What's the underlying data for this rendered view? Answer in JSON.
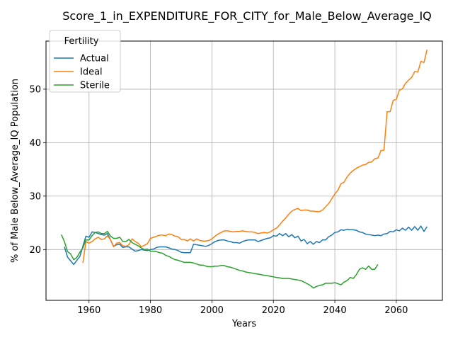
{
  "chart_data": {
    "type": "line",
    "title": "Score_1_in_EXPENDITURE_FOR_CITY_for_Male_Below_Average_IQ",
    "xlabel": "Years",
    "ylabel": "% of Male Below_Average_IQ Population",
    "xlim": [
      1946,
      2075
    ],
    "ylim": [
      10.5,
      59
    ],
    "xticks": [
      1960,
      1980,
      2000,
      2020,
      2040,
      2060
    ],
    "yticks": [
      20,
      30,
      40,
      50
    ],
    "grid": true,
    "legend": {
      "title": "Fertility",
      "position": "top-left"
    },
    "series": [
      {
        "name": "Actual",
        "color": "#1f77b4",
        "x": [
          1952,
          1953,
          1955,
          1957,
          1959,
          1960,
          1961,
          1962,
          1963,
          1964,
          1965,
          1966,
          1967,
          1968,
          1969,
          1970,
          1971,
          1972,
          1973,
          1974,
          1975,
          1976,
          1977,
          1978,
          1979,
          1980,
          1981,
          1982,
          1983,
          1984,
          1985,
          1986,
          1987,
          1988,
          1989,
          1990,
          1991,
          1992,
          1993,
          1994,
          1995,
          1996,
          1997,
          1998,
          1999,
          2000,
          2001,
          2002,
          2003,
          2004,
          2005,
          2006,
          2007,
          2008,
          2009,
          2010,
          2011,
          2012,
          2013,
          2014,
          2015,
          2016,
          2017,
          2018,
          2019,
          2020,
          2021,
          2022,
          2023,
          2024,
          2025,
          2026,
          2027,
          2028,
          2029,
          2030,
          2031,
          2032,
          2033,
          2034,
          2035,
          2036,
          2037,
          2038,
          2039,
          2040,
          2041,
          2042,
          2043,
          2044,
          2045,
          2046,
          2047,
          2048,
          2049,
          2050,
          2051,
          2052,
          2053,
          2054,
          2055,
          2056,
          2057,
          2058,
          2059,
          2060,
          2061,
          2062,
          2063,
          2064,
          2065,
          2066,
          2067,
          2068,
          2069,
          2070
        ],
        "values": [
          20.5,
          18.6,
          17.2,
          18.7,
          22.5,
          22.3,
          23.3,
          23.2,
          23.0,
          22.8,
          22.7,
          23.0,
          21.8,
          20.6,
          20.9,
          21.0,
          20.4,
          20.5,
          20.5,
          20.1,
          19.7,
          19.8,
          20.0,
          19.9,
          19.8,
          20.0,
          20.1,
          20.4,
          20.5,
          20.5,
          20.5,
          20.3,
          20.1,
          20.0,
          19.8,
          19.5,
          19.4,
          19.4,
          19.4,
          21.0,
          20.9,
          20.8,
          20.7,
          20.6,
          20.8,
          21.1,
          21.5,
          21.7,
          21.8,
          21.8,
          21.6,
          21.5,
          21.3,
          21.3,
          21.2,
          21.5,
          21.7,
          21.8,
          21.8,
          21.8,
          21.5,
          21.7,
          21.9,
          22.1,
          22.2,
          22.6,
          22.5,
          23.0,
          22.6,
          23.0,
          22.4,
          22.8,
          22.2,
          22.5,
          21.6,
          21.9,
          21.1,
          21.5,
          21.0,
          21.5,
          21.3,
          21.8,
          21.8,
          22.4,
          22.7,
          23.2,
          23.3,
          23.7,
          23.6,
          23.8,
          23.7,
          23.7,
          23.6,
          23.3,
          23.2,
          22.9,
          22.8,
          22.7,
          22.6,
          22.7,
          22.6,
          22.9,
          23.0,
          23.4,
          23.3,
          23.7,
          23.5,
          24.0,
          23.6,
          24.2,
          23.6,
          24.3,
          23.6,
          24.4,
          23.4,
          24.3
        ]
      },
      {
        "name": "Ideal",
        "color": "#ff7f0e",
        "x": [
          1958,
          1959,
          1960,
          1961,
          1962,
          1963,
          1964,
          1965,
          1966,
          1967,
          1968,
          1969,
          1970,
          1971,
          1972,
          1973,
          1974,
          1975,
          1976,
          1977,
          1978,
          1979,
          1980,
          1981,
          1982,
          1983,
          1984,
          1985,
          1986,
          1987,
          1988,
          1989,
          1990,
          1991,
          1992,
          1993,
          1994,
          1995,
          1996,
          1997,
          1998,
          1999,
          2000,
          2001,
          2002,
          2003,
          2004,
          2005,
          2006,
          2007,
          2008,
          2009,
          2010,
          2011,
          2012,
          2013,
          2014,
          2015,
          2016,
          2017,
          2018,
          2019,
          2020,
          2021,
          2022,
          2023,
          2024,
          2025,
          2026,
          2027,
          2028,
          2029,
          2030,
          2031,
          2032,
          2033,
          2034,
          2035,
          2036,
          2037,
          2038,
          2039,
          2040,
          2041,
          2042,
          2043,
          2044,
          2045,
          2046,
          2047,
          2048,
          2049,
          2050,
          2051,
          2052,
          2053,
          2054,
          2055,
          2056,
          2057,
          2058,
          2059,
          2060,
          2061,
          2062,
          2063,
          2064,
          2065,
          2066,
          2067,
          2068,
          2069,
          2070
        ],
        "values": [
          17.5,
          21.5,
          21.2,
          21.5,
          22.0,
          22.3,
          21.9,
          22.0,
          22.6,
          21.8,
          20.5,
          21.2,
          21.3,
          20.7,
          20.6,
          20.9,
          22.0,
          21.5,
          21.2,
          20.5,
          20.8,
          21.1,
          22.1,
          22.3,
          22.5,
          22.7,
          22.7,
          22.6,
          22.9,
          22.8,
          22.5,
          22.4,
          21.9,
          21.9,
          21.6,
          22.0,
          21.6,
          22.0,
          21.7,
          21.6,
          21.6,
          21.7,
          22.0,
          22.5,
          22.9,
          23.2,
          23.5,
          23.5,
          23.4,
          23.3,
          23.4,
          23.4,
          23.5,
          23.4,
          23.3,
          23.3,
          23.2,
          23.0,
          23.1,
          23.2,
          23.1,
          23.3,
          23.7,
          24.0,
          24.6,
          25.3,
          25.9,
          26.6,
          27.2,
          27.5,
          27.7,
          27.3,
          27.4,
          27.4,
          27.2,
          27.2,
          27.1,
          27.1,
          27.4,
          28.0,
          28.6,
          29.5,
          30.4,
          31.1,
          32.3,
          32.6,
          33.6,
          34.3,
          34.8,
          35.2,
          35.5,
          35.8,
          35.9,
          36.3,
          36.4,
          37.0,
          37.1,
          38.5,
          38.6,
          45.8,
          45.8,
          47.9,
          48.1,
          49.8,
          50.1,
          51.1,
          51.7,
          52.2,
          53.3,
          53.2,
          55.2,
          55.0,
          57.4
        ]
      },
      {
        "name": "Sterile",
        "color": "#2ca02c",
        "x": [
          1951,
          1952,
          1953,
          1954,
          1955,
          1956,
          1957,
          1958,
          1959,
          1960,
          1961,
          1962,
          1963,
          1964,
          1965,
          1966,
          1967,
          1968,
          1969,
          1970,
          1971,
          1972,
          1973,
          1974,
          1975,
          1976,
          1977,
          1978,
          1979,
          1980,
          1981,
          1982,
          1983,
          1984,
          1985,
          1986,
          1987,
          1988,
          1989,
          1990,
          1991,
          1992,
          1993,
          1994,
          1995,
          1996,
          1997,
          1998,
          1999,
          2000,
          2001,
          2002,
          2003,
          2004,
          2005,
          2006,
          2007,
          2008,
          2009,
          2010,
          2011,
          2012,
          2013,
          2014,
          2015,
          2016,
          2017,
          2018,
          2019,
          2020,
          2021,
          2022,
          2023,
          2024,
          2025,
          2026,
          2027,
          2028,
          2029,
          2030,
          2031,
          2032,
          2033,
          2034,
          2035,
          2036,
          2037,
          2038,
          2039,
          2040,
          2041,
          2042,
          2043,
          2044,
          2045,
          2046,
          2047,
          2048,
          2049,
          2050,
          2051,
          2052,
          2053,
          2054
        ],
        "values": [
          22.8,
          21.5,
          19.6,
          19.2,
          18.1,
          18.5,
          19.5,
          20.3,
          21.8,
          21.8,
          22.6,
          23.2,
          23.3,
          23.0,
          23.0,
          23.4,
          22.5,
          22.1,
          22.1,
          22.3,
          21.5,
          21.5,
          21.9,
          21.3,
          21.0,
          20.7,
          20.3,
          20.0,
          20.1,
          19.7,
          19.7,
          19.6,
          19.4,
          19.3,
          18.9,
          18.7,
          18.4,
          18.1,
          18.0,
          17.8,
          17.6,
          17.6,
          17.6,
          17.5,
          17.3,
          17.1,
          17.1,
          16.9,
          16.8,
          16.8,
          16.9,
          16.9,
          17.0,
          17.0,
          16.8,
          16.7,
          16.5,
          16.3,
          16.1,
          16.0,
          15.8,
          15.7,
          15.6,
          15.5,
          15.4,
          15.3,
          15.2,
          15.1,
          15.0,
          14.9,
          14.8,
          14.7,
          14.6,
          14.6,
          14.6,
          14.5,
          14.4,
          14.3,
          14.2,
          13.9,
          13.6,
          13.3,
          12.8,
          13.1,
          13.3,
          13.4,
          13.7,
          13.7,
          13.7,
          13.8,
          13.6,
          13.4,
          13.9,
          14.2,
          14.8,
          14.6,
          15.3,
          16.3,
          16.6,
          16.3,
          16.9,
          16.3,
          16.3,
          17.2
        ]
      }
    ]
  }
}
